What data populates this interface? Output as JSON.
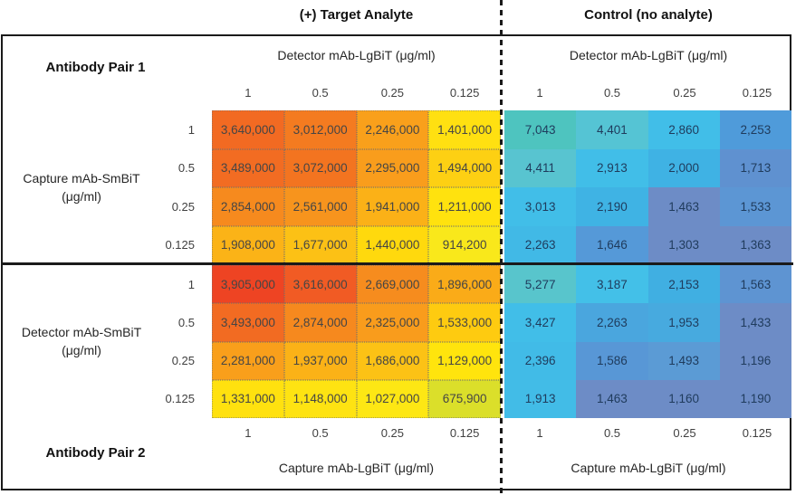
{
  "header": {
    "target_title": "(+) Target Analyte",
    "control_title": "Control (no analyte)"
  },
  "pair1": {
    "label": "Antibody Pair 1",
    "top_axis_target": "Detector mAb-LgBiT (μg/ml)",
    "top_axis_control": "Detector mAb-LgBiT (μg/ml)",
    "side_axis_line1": "Capture mAb-SmBiT",
    "side_axis_line2": "(μg/ml)"
  },
  "pair2": {
    "label": "Antibody Pair 2",
    "bottom_axis_target": "Capture mAb-LgBiT (μg/ml)",
    "bottom_axis_control": "Capture mAb-LgBiT (μg/ml)",
    "side_axis_line1": "Detector mAb-SmBiT",
    "side_axis_line2": "(μg/ml)"
  },
  "concentrations": [
    "1",
    "0.5",
    "0.25",
    "0.125"
  ],
  "chart_data": {
    "type": "heatmap",
    "units": "μg/ml",
    "row_labels": [
      "1",
      "0.5",
      "0.25",
      "0.125"
    ],
    "col_labels": [
      "1",
      "0.5",
      "0.25",
      "0.125"
    ],
    "colormap_note": "high values red-orange, mid yellow, low teal-blue-slate",
    "blocks": {
      "pair1_target": {
        "pair": "Antibody Pair 1",
        "condition": "(+) Target Analyte",
        "values": [
          [
            3640000,
            3012000,
            2246000,
            1401000
          ],
          [
            3489000,
            3072000,
            2295000,
            1494000
          ],
          [
            2854000,
            2561000,
            1941000,
            1211000
          ],
          [
            1908000,
            1677000,
            1440000,
            914200
          ]
        ],
        "colors": [
          [
            "#F26A22",
            "#F47B20",
            "#F9A01B",
            "#FFE011"
          ],
          [
            "#F26C22",
            "#F37420",
            "#F99D1C",
            "#FDD013"
          ],
          [
            "#F68A1E",
            "#F7941D",
            "#FBB117",
            "#FFE20E"
          ],
          [
            "#FBB317",
            "#FCC115",
            "#FFD90D",
            "#F9E81B"
          ]
        ]
      },
      "pair1_control": {
        "pair": "Antibody Pair 1",
        "condition": "Control (no analyte)",
        "values": [
          [
            7043,
            4401,
            2860,
            2253
          ],
          [
            4411,
            2913,
            2000,
            1713
          ],
          [
            3013,
            2190,
            1463,
            1533
          ],
          [
            2263,
            1646,
            1303,
            1363
          ]
        ],
        "colors": [
          [
            "#4EC4BF",
            "#55C4D4",
            "#41BEE8",
            "#4F9BDA"
          ],
          [
            "#58C4D0",
            "#41BEE8",
            "#3FB2E4",
            "#5F91D0"
          ],
          [
            "#41BEE8",
            "#3FB3E4",
            "#6D8CC6",
            "#5C96D4"
          ],
          [
            "#41B9E6",
            "#5599D8",
            "#6D8CC6",
            "#6D8CC6"
          ]
        ]
      },
      "pair2_target": {
        "pair": "Antibody Pair 2",
        "condition": "(+) Target Analyte",
        "values": [
          [
            3905000,
            3616000,
            2669000,
            1896000
          ],
          [
            3493000,
            2874000,
            2325000,
            1533000
          ],
          [
            2281000,
            1937000,
            1686000,
            1129000
          ],
          [
            1331000,
            1148000,
            1027000,
            675900
          ]
        ],
        "colors": [
          [
            "#EE4423",
            "#F15B24",
            "#F68C1E",
            "#FAAB18"
          ],
          [
            "#F26B22",
            "#F6891E",
            "#F99C1C",
            "#FECB10"
          ],
          [
            "#F99F1B",
            "#FBB217",
            "#FCC215",
            "#FFE40D"
          ],
          [
            "#FFE10F",
            "#FEE312",
            "#FDE714",
            "#DBDF2A"
          ]
        ]
      },
      "pair2_control": {
        "pair": "Antibody Pair 2",
        "condition": "Control (no analyte)",
        "values": [
          [
            5277,
            3187,
            2153,
            1563
          ],
          [
            3427,
            2263,
            1953,
            1433
          ],
          [
            2396,
            1586,
            1493,
            1196
          ],
          [
            1913,
            1463,
            1160,
            1190
          ]
        ],
        "colors": [
          [
            "#58C5CC",
            "#43C0E8",
            "#40AFE2",
            "#5E94D2"
          ],
          [
            "#41BEE8",
            "#4AA6DE",
            "#47AADF",
            "#6D8CC6"
          ],
          [
            "#41BBE7",
            "#5897D6",
            "#5B9BD5",
            "#6D8CC6"
          ],
          [
            "#42BCE7",
            "#6D8CC6",
            "#6D8CC6",
            "#6D8CC6"
          ]
        ]
      }
    }
  }
}
